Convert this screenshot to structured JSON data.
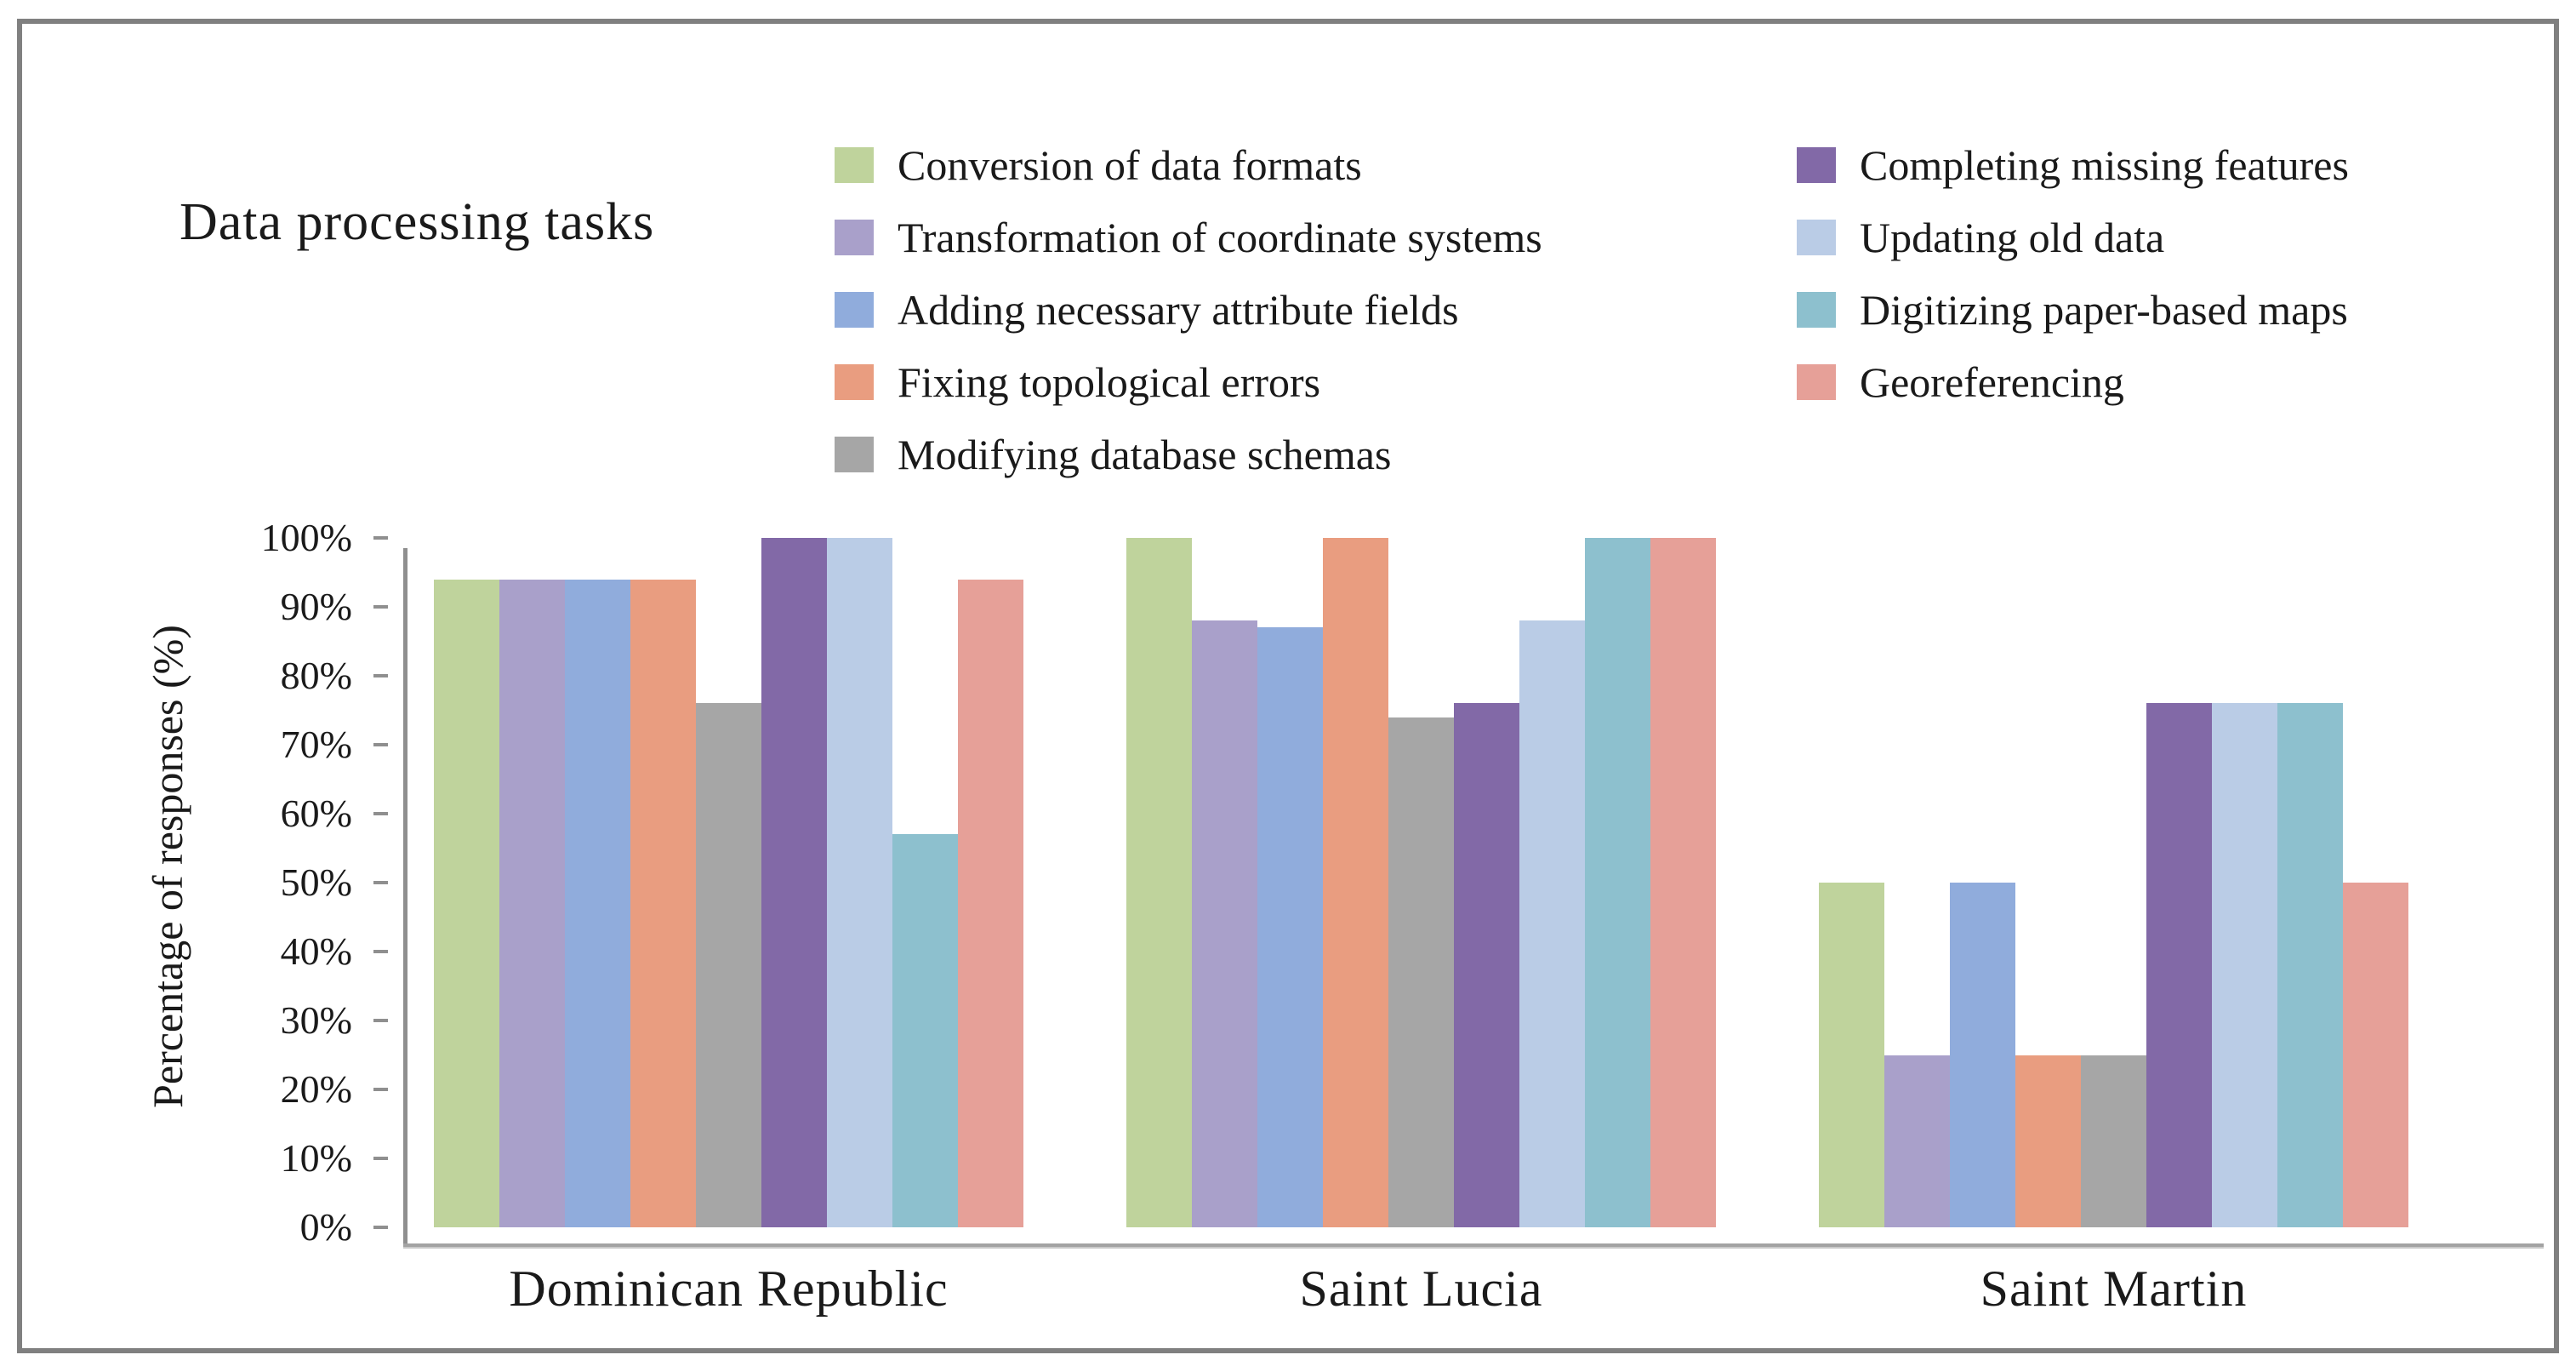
{
  "chart_data": {
    "type": "bar",
    "title": "Data processing tasks",
    "ylabel": "Percentage of responses (%)",
    "categories": [
      "Dominican Republic",
      "Saint Lucia",
      "Saint Martin"
    ],
    "series": [
      {
        "name": "Conversion of data formats",
        "color": "#bfd39c",
        "values": [
          94,
          100,
          50
        ]
      },
      {
        "name": "Transformation of coordinate systems",
        "color": "#a9a0ca",
        "values": [
          94,
          88,
          25
        ]
      },
      {
        "name": "Adding necessary attribute fields",
        "color": "#90acdc",
        "values": [
          94,
          87,
          50
        ]
      },
      {
        "name": "Fixing topological errors",
        "color": "#e99d80",
        "values": [
          94,
          100,
          25
        ]
      },
      {
        "name": "Modifying database schemas",
        "color": "#a6a6a6",
        "values": [
          76,
          74,
          25
        ]
      },
      {
        "name": "Completing missing features",
        "color": "#8269a7",
        "values": [
          100,
          76,
          76
        ]
      },
      {
        "name": "Updating old data",
        "color": "#bacce6",
        "values": [
          100,
          88,
          76
        ]
      },
      {
        "name": "Digitizing paper-based maps",
        "color": "#8dc0ce",
        "values": [
          57,
          100,
          76
        ]
      },
      {
        "name": "Georeferencing",
        "color": "#e6a098",
        "values": [
          94,
          100,
          50
        ]
      }
    ],
    "yticks": [
      "0%",
      "10%",
      "20%",
      "30%",
      "40%",
      "50%",
      "60%",
      "70%",
      "80%",
      "90%",
      "100%"
    ],
    "ylim": [
      0,
      100
    ],
    "grid": false,
    "legend_position": "top-two-columns",
    "axis_color": "#8f8f8f"
  }
}
